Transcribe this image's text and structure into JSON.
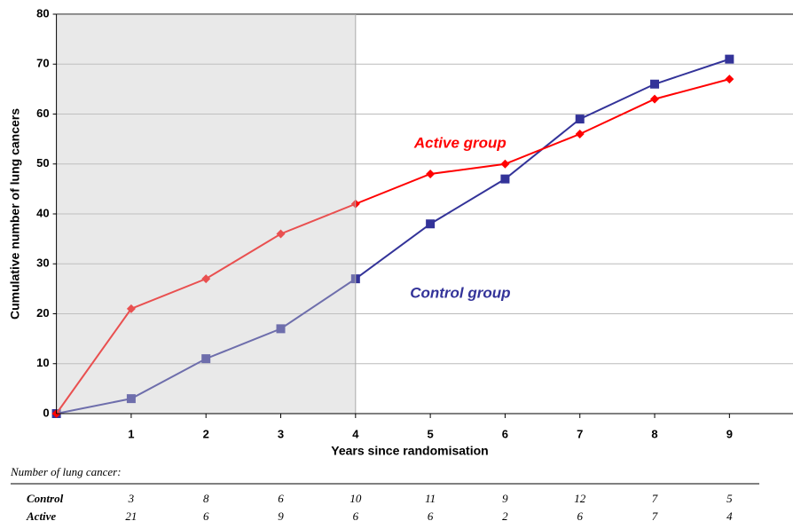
{
  "chart_data": {
    "type": "line",
    "x": [
      0,
      1,
      2,
      3,
      4,
      5,
      6,
      7,
      8,
      9
    ],
    "series": [
      {
        "name": "Control group",
        "color": "#333399",
        "marker": "square",
        "values": [
          0,
          3,
          11,
          17,
          27,
          38,
          47,
          59,
          66,
          71
        ]
      },
      {
        "name": "Active group",
        "color": "#ff0000",
        "marker": "diamond",
        "values": [
          0,
          21,
          27,
          36,
          42,
          48,
          50,
          56,
          63,
          67
        ]
      }
    ],
    "x_label": "Years since randomisation",
    "y_label": "Cumulative number of lung cancers",
    "xlim": [
      0,
      9.85
    ],
    "ylim": [
      0,
      80
    ],
    "xticks": [
      1,
      2,
      3,
      4,
      5,
      6,
      7,
      8,
      9
    ],
    "yticks": [
      0,
      10,
      20,
      30,
      40,
      50,
      60,
      70,
      80
    ],
    "shade_xlim": [
      0,
      4
    ],
    "grid": true
  },
  "table": {
    "title": "Number of lung cancer:",
    "rows": [
      {
        "label": "Control",
        "values": [
          3,
          8,
          6,
          10,
          11,
          9,
          12,
          7,
          5
        ]
      },
      {
        "label": "Active",
        "values": [
          21,
          6,
          9,
          6,
          6,
          2,
          6,
          7,
          4
        ]
      }
    ]
  }
}
